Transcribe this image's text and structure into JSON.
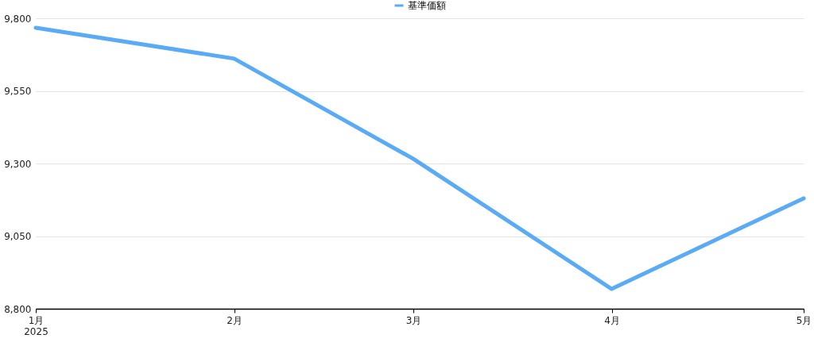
{
  "chart_data": {
    "type": "line",
    "x": [
      "2025-01",
      "2025-02",
      "2025-03",
      "2025-04",
      "2025-05"
    ],
    "series": [
      {
        "name": "基準価額",
        "color": "#5aabf5",
        "values": [
          9767,
          9661,
          9316,
          8868,
          9180
        ]
      }
    ],
    "xlim": [
      "2025-01",
      "2025-05"
    ],
    "xticks": [
      {
        "value": "2025-01",
        "label": "1月\n2025"
      },
      {
        "value": "2025-02",
        "label": "2月"
      },
      {
        "value": "2025-03",
        "label": "3月"
      },
      {
        "value": "2025-04",
        "label": "4月"
      },
      {
        "value": "2025-05",
        "label": "5月"
      }
    ],
    "ylim": [
      8800,
      9800
    ],
    "yticks": [
      {
        "value": 8800,
        "label": "8,800"
      },
      {
        "value": 9050,
        "label": "9,050"
      },
      {
        "value": 9300,
        "label": "9,300"
      },
      {
        "value": 9550,
        "label": "9,550"
      },
      {
        "value": 9800,
        "label": "9,800"
      }
    ],
    "grid": "y",
    "legend": "top",
    "marker": "none",
    "line_style": "solid"
  }
}
